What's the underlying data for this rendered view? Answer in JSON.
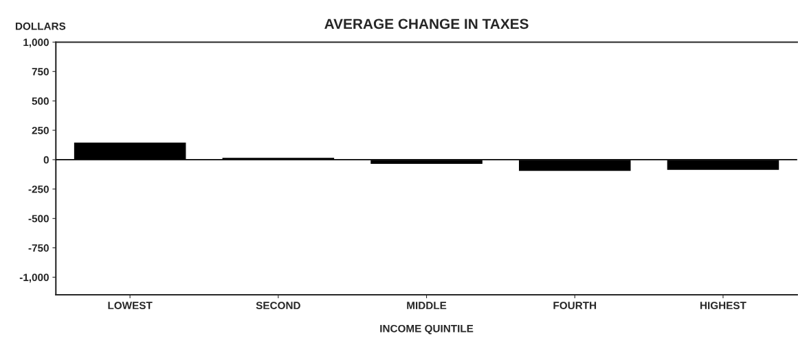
{
  "chart_data": {
    "type": "bar",
    "title": "AVERAGE CHANGE IN TAXES",
    "ylabel": "DOLLARS",
    "xlabel": "INCOME QUINTILE",
    "categories": [
      "LOWEST",
      "SECOND",
      "MIDDLE",
      "FOURTH",
      "HIGHEST"
    ],
    "values": [
      150,
      20,
      -40,
      -100,
      -90
    ],
    "color": "#000000",
    "ylim": [
      -1150,
      1000
    ],
    "yticks": [
      {
        "value": 1000,
        "label": "1,000"
      },
      750,
      500,
      250,
      0,
      -250,
      -500,
      -750,
      {
        "value": -1000,
        "label": "-1,000"
      }
    ],
    "ref_lines": [
      {
        "axis": "y",
        "value": 0,
        "color": "#000000"
      }
    ],
    "grid": false,
    "legend": false
  }
}
